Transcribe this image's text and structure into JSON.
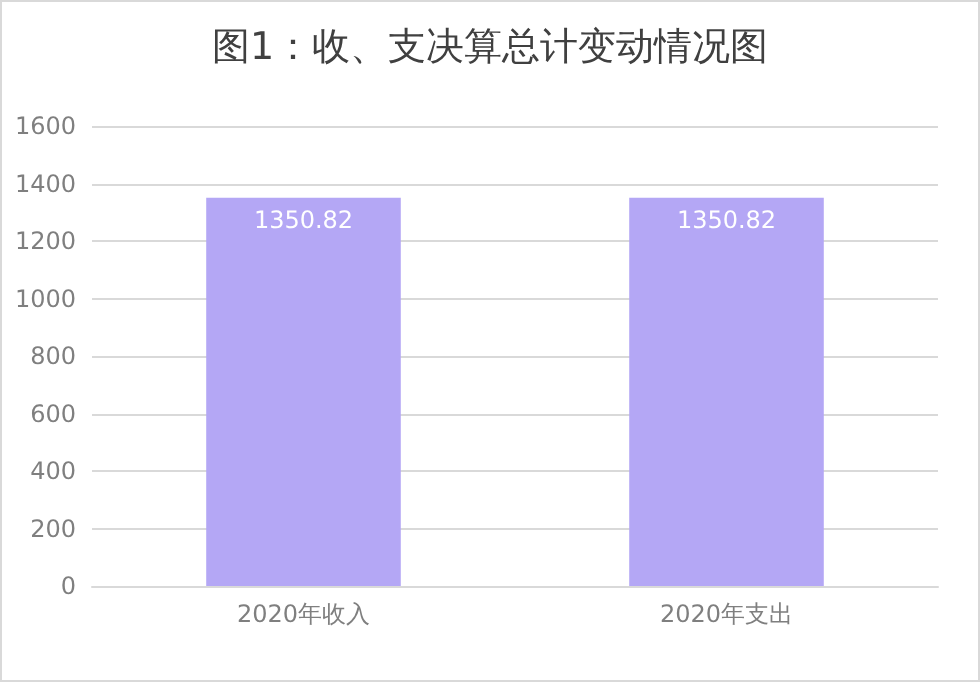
{
  "chart_data": {
    "type": "bar",
    "title": "图1：收、支决算总计变动情况图",
    "categories": [
      "2020年收入",
      "2020年支出"
    ],
    "values": [
      1350.82,
      1350.82
    ],
    "color": "#b4a7f5",
    "ylim": [
      0,
      1600
    ],
    "yticks": [
      0,
      200,
      400,
      600,
      800,
      1000,
      1200,
      1400,
      1600
    ],
    "grid": "y",
    "data_labels": true
  }
}
